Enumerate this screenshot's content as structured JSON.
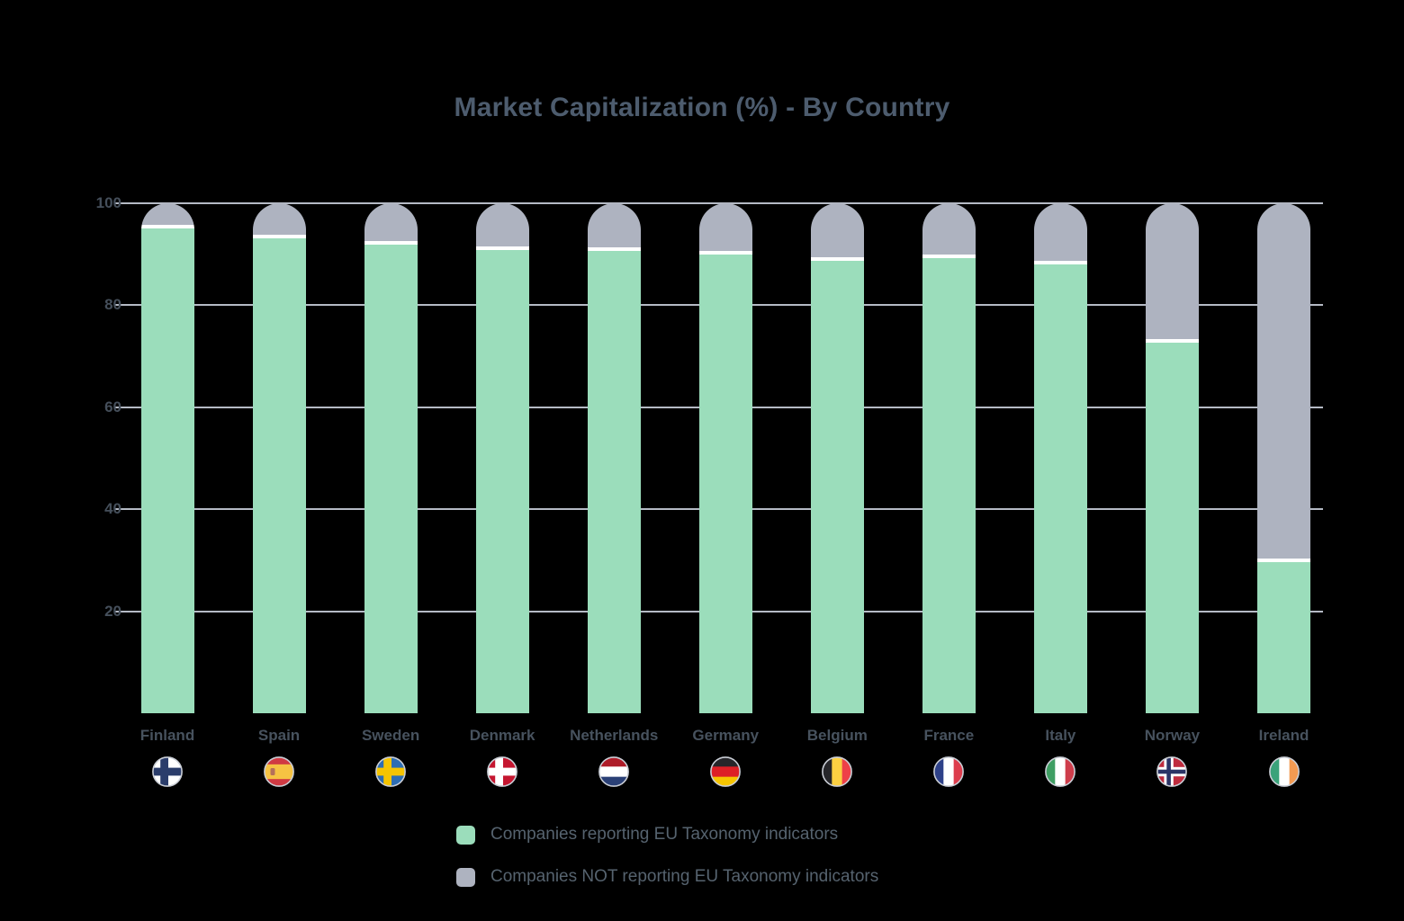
{
  "page": {
    "background": "#000000"
  },
  "chart_data": {
    "type": "bar",
    "stacked": true,
    "title": "Market Capitalization (%) - By Country",
    "categories": [
      "Finland",
      "Spain",
      "Sweden",
      "Denmark",
      "Netherlands",
      "Germany",
      "Belgium",
      "France",
      "Italy",
      "Norway",
      "Ireland"
    ],
    "series": [
      {
        "name": "Companies reporting EU Taxonomy indicators",
        "color": "#9BDDBB",
        "values": [
          95.0,
          93.1,
          91.8,
          90.8,
          90.7,
          89.9,
          88.8,
          89.3,
          88.0,
          72.7,
          29.6
        ]
      },
      {
        "name": "Companies NOT reporting EU Taxonomy indicators",
        "color": "#AEB3C0",
        "values": [
          5.0,
          6.9,
          8.2,
          9.2,
          9.3,
          10.1,
          11.2,
          10.7,
          12.0,
          27.3,
          70.4
        ]
      }
    ],
    "xlabel": "",
    "ylabel": "",
    "ylim": [
      0,
      100
    ],
    "yticks": [
      20,
      40,
      60,
      80,
      100
    ],
    "grid": true,
    "legend_position": "bottom",
    "segment_separator_color": "#FFFFFF",
    "bar_top_rounded": true
  },
  "style": {
    "title_color": "#4D5C6E",
    "tick_color": "#454F5B",
    "xlabel_color": "#47525E",
    "legend_text_color": "#56636F",
    "gridline_color": "#B5BAC5",
    "flag_ring_color": "#C9CDD5"
  },
  "flags": [
    {
      "country": "Finland",
      "icon": "finland-flag-icon",
      "pattern": "nordic",
      "field": "#FFFFFF",
      "cross": "#2B3D6B"
    },
    {
      "country": "Spain",
      "icon": "spain-flag-icon",
      "pattern": "h",
      "stripes": [
        [
          "#D03A43",
          26
        ],
        [
          "#F6C343",
          48
        ],
        [
          "#D03A43",
          26
        ]
      ],
      "emblem": "#B5705A"
    },
    {
      "country": "Sweden",
      "icon": "sweden-flag-icon",
      "pattern": "nordic",
      "field": "#2D6DB3",
      "cross": "#F5C400"
    },
    {
      "country": "Denmark",
      "icon": "denmark-flag-icon",
      "pattern": "nordic",
      "field": "#C51630",
      "cross": "#FFFFFF"
    },
    {
      "country": "Netherlands",
      "icon": "netherlands-flag-icon",
      "pattern": "h",
      "stripes": [
        [
          "#AE1C28",
          33.3
        ],
        [
          "#FFFFFF",
          33.3
        ],
        [
          "#2A4076",
          33.4
        ]
      ]
    },
    {
      "country": "Germany",
      "icon": "germany-flag-icon",
      "pattern": "h",
      "stripes": [
        [
          "#26262A",
          33.3
        ],
        [
          "#DD1F26",
          33.3
        ],
        [
          "#F6C500",
          33.4
        ]
      ]
    },
    {
      "country": "Belgium",
      "icon": "belgium-flag-icon",
      "pattern": "v",
      "stripes": [
        [
          "#26262A",
          33.3
        ],
        [
          "#FBD042",
          33.3
        ],
        [
          "#EE4048",
          33.4
        ]
      ]
    },
    {
      "country": "France",
      "icon": "france-flag-icon",
      "pattern": "v",
      "stripes": [
        [
          "#2E4189",
          33.3
        ],
        [
          "#FFFFFF",
          33.3
        ],
        [
          "#DD3D4D",
          33.4
        ]
      ]
    },
    {
      "country": "Italy",
      "icon": "italy-flag-icon",
      "pattern": "v",
      "stripes": [
        [
          "#3F9E63",
          33.3
        ],
        [
          "#FFFFFF",
          33.3
        ],
        [
          "#CE3D4B",
          33.4
        ]
      ]
    },
    {
      "country": "Norway",
      "icon": "norway-flag-icon",
      "pattern": "nordic2",
      "field": "#BF2C3E",
      "cross": "#FFFFFF",
      "inner": "#2B3466"
    },
    {
      "country": "Ireland",
      "icon": "ireland-flag-icon",
      "pattern": "v",
      "stripes": [
        [
          "#3AA37A",
          33.3
        ],
        [
          "#FFFFFF",
          33.3
        ],
        [
          "#F29A52",
          33.4
        ]
      ]
    }
  ]
}
